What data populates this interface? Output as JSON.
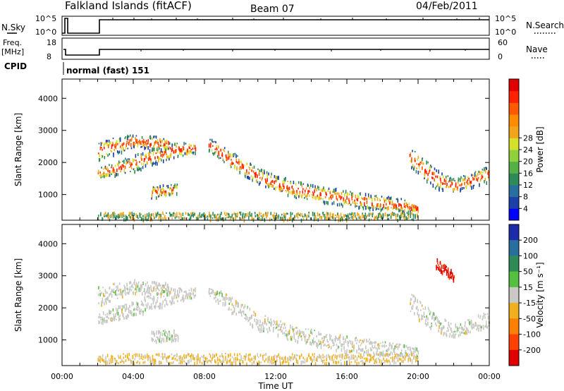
{
  "header": {
    "title": "Falkland Islands (fitACF)",
    "beam": "Beam 07",
    "date": "04/Feb/2011"
  },
  "panels": {
    "nsky": {
      "left_label": "N.Sky",
      "right_label": "N.Search",
      "left_ticks": [
        "10^5",
        "10^0"
      ],
      "right_ticks": [
        "10^5",
        "10^0"
      ]
    },
    "freq": {
      "left_label_1": "Freq.",
      "left_label_2": "[MHz]",
      "right_label": "Nave",
      "left_ticks": [
        "18",
        "8"
      ],
      "right_ticks": [
        "60",
        "0"
      ]
    },
    "cpid": {
      "label": "CPID",
      "mode": "normal (fast) 151"
    }
  },
  "chart_data": [
    {
      "type": "heatmap",
      "name": "power",
      "ylabel": "Slant Range [km]",
      "xlabel": "",
      "ylim": [
        200,
        4600
      ],
      "xlim": [
        0,
        24
      ],
      "yticks": [
        "1000",
        "2000",
        "3000",
        "4000"
      ],
      "colorbar": {
        "label": "Power [dB]",
        "ticks": [
          "4",
          "8",
          "12",
          "16",
          "20",
          "24",
          "28"
        ],
        "colors": [
          "#0000ff",
          "#1c3fa8",
          "#2a6ea0",
          "#2e8b57",
          "#55b048",
          "#8fd13c",
          "#d4e02a",
          "#f2a41c",
          "#ff8c00",
          "#ff5a00",
          "#ff2200",
          "#e00000"
        ]
      }
    },
    {
      "type": "heatmap",
      "name": "velocity",
      "ylabel": "Slant Range [km]",
      "xlabel": "Time UT",
      "ylim": [
        200,
        4600
      ],
      "xlim": [
        0,
        24
      ],
      "yticks": [
        "1000",
        "2000",
        "3000",
        "4000"
      ],
      "xticks": [
        "00:00",
        "04:00",
        "08:00",
        "12:00",
        "16:00",
        "20:00",
        "00:00"
      ],
      "colorbar": {
        "label": "Velocity [m s⁻¹]",
        "ticks": [
          "200",
          "100",
          "50",
          "15",
          "-15",
          "-50",
          "-100",
          "-200"
        ],
        "colors": [
          "#1c2ca8",
          "#2a6ea0",
          "#2e8b57",
          "#55c040",
          "#c8c8c4",
          "#f0b020",
          "#ff8000",
          "#ff4000",
          "#e00000"
        ]
      }
    }
  ]
}
